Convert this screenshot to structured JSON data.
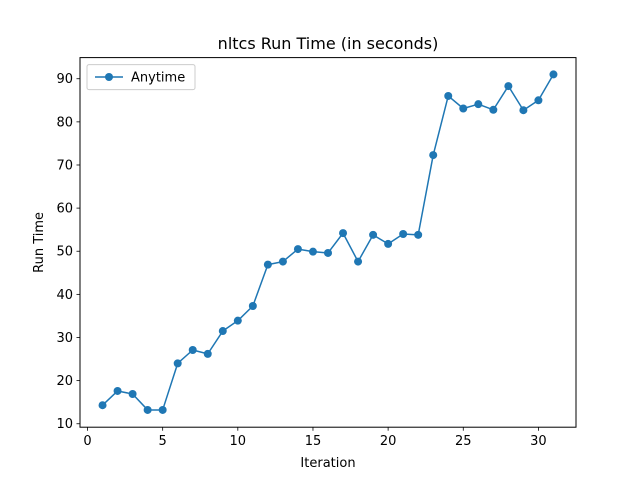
{
  "chart_data": {
    "type": "line",
    "title": "nltcs Run Time (in seconds)",
    "xlabel": "Iteration",
    "ylabel": "Run Time",
    "xlim": [
      -0.5,
      32.5
    ],
    "ylim": [
      9.2,
      94.9
    ],
    "xticks": [
      0,
      5,
      10,
      15,
      20,
      25,
      30
    ],
    "yticks": [
      10,
      20,
      30,
      40,
      50,
      60,
      70,
      80,
      90
    ],
    "grid": false,
    "legend_position": "top-left",
    "series": [
      {
        "name": "Anytime",
        "color": "#1f77b4",
        "marker": "circle",
        "x": [
          1,
          2,
          3,
          4,
          5,
          6,
          7,
          8,
          9,
          10,
          11,
          12,
          13,
          14,
          15,
          16,
          17,
          18,
          19,
          20,
          21,
          22,
          23,
          24,
          25,
          26,
          27,
          28,
          29,
          30,
          31
        ],
        "y": [
          14.3,
          17.6,
          16.9,
          13.2,
          13.2,
          24.0,
          27.1,
          26.2,
          31.5,
          33.9,
          37.3,
          46.9,
          47.6,
          50.5,
          49.9,
          49.6,
          54.2,
          47.6,
          53.8,
          51.7,
          54.0,
          53.8,
          72.3,
          86.0,
          83.1,
          84.1,
          82.8,
          88.3,
          82.7,
          85.0,
          91.0
        ]
      }
    ]
  }
}
